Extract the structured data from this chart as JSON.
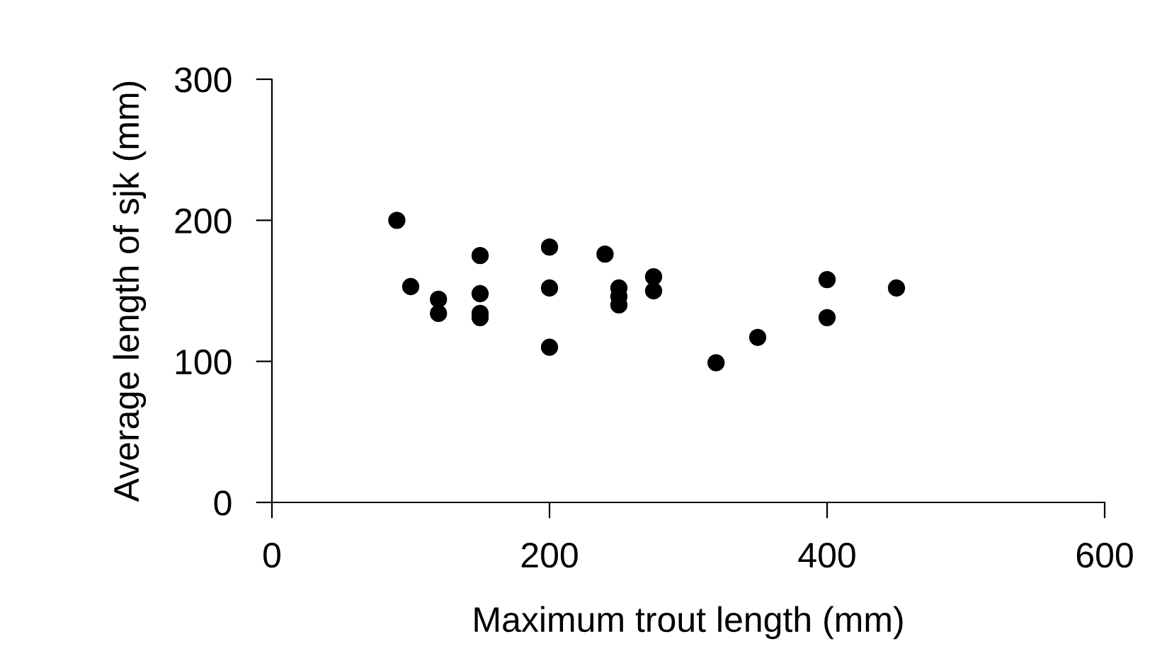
{
  "chart_data": {
    "type": "scatter",
    "xlabel": "Maximum trout length (mm)",
    "ylabel": "Average length of sjk (mm)",
    "x": [
      90,
      100,
      120,
      120,
      150,
      150,
      150,
      150,
      200,
      200,
      200,
      240,
      250,
      250,
      250,
      275,
      275,
      320,
      350,
      400,
      400,
      450
    ],
    "values": [
      200,
      153,
      144,
      134,
      175,
      148,
      134,
      131,
      181,
      152,
      110,
      176,
      152,
      146,
      140,
      160,
      150,
      99,
      117,
      158,
      131,
      152
    ],
    "color": "#000000",
    "marker": "circle",
    "xlim": [
      0,
      600
    ],
    "ylim": [
      0,
      300
    ],
    "xticks": [
      0,
      200,
      400,
      600
    ],
    "yticks": [
      0,
      100,
      200,
      300
    ],
    "grid": false
  }
}
